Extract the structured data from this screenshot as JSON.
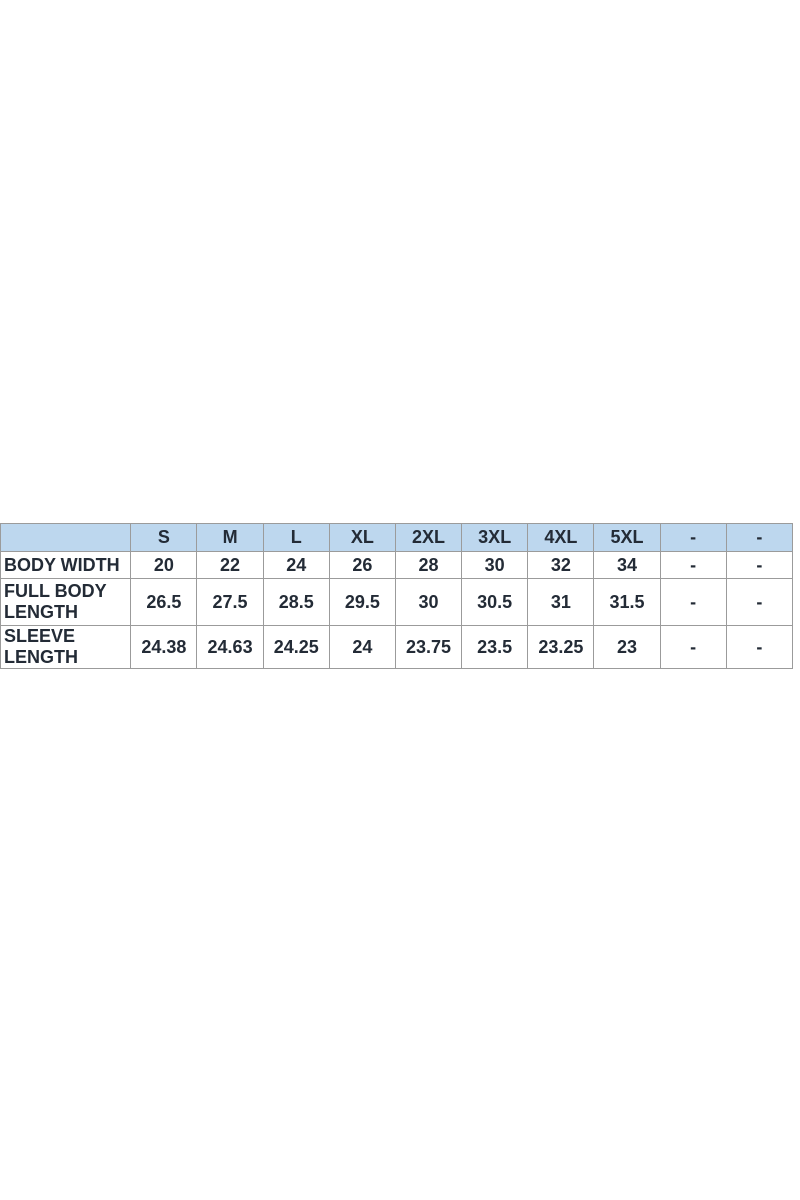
{
  "page": {
    "background": "#ffffff"
  },
  "size_chart": {
    "header_bg": "#bdd7ee",
    "border_color": "#9b9b9b",
    "text_color": "#232b36",
    "columns": [
      "",
      "S",
      "M",
      "L",
      "XL",
      "2XL",
      "3XL",
      "4XL",
      "5XL",
      "-",
      "-"
    ],
    "rows": [
      {
        "label": "BODY WIDTH",
        "values": [
          "20",
          "22",
          "24",
          "26",
          "28",
          "30",
          "32",
          "34",
          "-",
          "-"
        ]
      },
      {
        "label": "FULL BODY LENGTH",
        "values": [
          "26.5",
          "27.5",
          "28.5",
          "29.5",
          "30",
          "30.5",
          "31",
          "31.5",
          "-",
          "-"
        ]
      },
      {
        "label": "SLEEVE LENGTH",
        "values": [
          "24.38",
          "24.63",
          "24.25",
          "24",
          "23.75",
          "23.5",
          "23.25",
          "23",
          "-",
          "-"
        ]
      }
    ]
  },
  "chart_data": {
    "type": "table",
    "title": "Apparel size chart (inches)",
    "categories": [
      "S",
      "M",
      "L",
      "XL",
      "2XL",
      "3XL",
      "4XL",
      "5XL",
      "-",
      "-"
    ],
    "series": [
      {
        "name": "BODY WIDTH",
        "values": [
          20,
          22,
          24,
          26,
          28,
          30,
          32,
          34,
          null,
          null
        ]
      },
      {
        "name": "FULL BODY LENGTH",
        "values": [
          26.5,
          27.5,
          28.5,
          29.5,
          30,
          30.5,
          31,
          31.5,
          null,
          null
        ]
      },
      {
        "name": "SLEEVE LENGTH",
        "values": [
          24.38,
          24.63,
          24.25,
          24,
          23.75,
          23.5,
          23.25,
          23,
          null,
          null
        ]
      }
    ]
  }
}
